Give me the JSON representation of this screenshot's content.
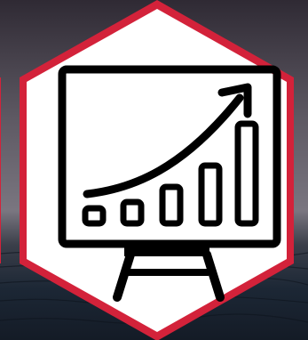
{
  "icon": "presentation-board-growth-chart-icon",
  "colors": {
    "frame_red": "#d3223a",
    "hex_fill": "#ffffff",
    "icon_ink": "#000000",
    "sky_top": "#2f2a34",
    "sky_mid": "#6b6670",
    "sea": "#1c2735"
  }
}
